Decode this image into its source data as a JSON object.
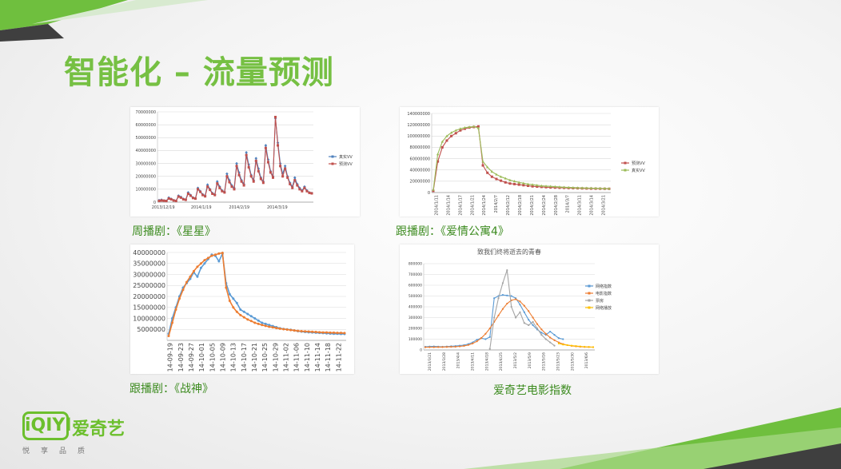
{
  "slide": {
    "title": "智能化 – 流量预测",
    "colors": {
      "green": "#76c043",
      "dark": "#4a4a4a"
    }
  },
  "logo": {
    "box_text": "iQIYI",
    "text": "爱奇艺",
    "tagline": "悦享品质"
  },
  "captions": [
    "周播剧：《星星》",
    "跟播剧：《爱情公寓4》",
    "跟播剧：《战神》",
    "爱奇艺电影指数"
  ],
  "chart_data": [
    {
      "type": "line",
      "title": "",
      "ylim": [
        0,
        70000000
      ],
      "y_ticks": [
        "0",
        "10000000",
        "20000000",
        "30000000",
        "40000000",
        "50000000",
        "60000000",
        "70000000"
      ],
      "x_ticks": [
        "2013/12/19",
        "2014/1/19",
        "2014/2/19",
        "2014/3/19"
      ],
      "legend": {
        "position": "right",
        "entries": [
          "真实VV",
          "预测VV"
        ]
      },
      "series": [
        {
          "name": "真实VV",
          "color": "#4f81bd",
          "marker": "diamond",
          "values": [
            1500000,
            1800000,
            1200000,
            1000000,
            3500000,
            2500000,
            1500000,
            1000000,
            5000000,
            4000000,
            2500000,
            2000000,
            7500000,
            5500000,
            3500000,
            3000000,
            11000000,
            8500000,
            6000000,
            5000000,
            13500000,
            10000000,
            7000000,
            6000000,
            16000000,
            12000000,
            9000000,
            8000000,
            22000000,
            17000000,
            13000000,
            11000000,
            30000000,
            23000000,
            17000000,
            14000000,
            38500000,
            29000000,
            21000000,
            17000000,
            34000000,
            26000000,
            19000000,
            16000000,
            44000000,
            33000000,
            24000000,
            20000000,
            65000000,
            46000000,
            30000000,
            22000000,
            28000000,
            20000000,
            15000000,
            12000000,
            19000000,
            14000000,
            11000000,
            9000000,
            12000000,
            9000000,
            7500000,
            7000000
          ]
        },
        {
          "name": "预测VV",
          "color": "#c0504d",
          "marker": "square",
          "values": [
            1000000,
            1300000,
            1100000,
            900000,
            2800000,
            2200000,
            1300000,
            900000,
            4300000,
            3500000,
            2200000,
            1800000,
            6500000,
            5000000,
            3200000,
            2700000,
            10000000,
            8000000,
            5500000,
            4500000,
            12000000,
            9500000,
            6500000,
            5500000,
            14500000,
            11000000,
            8500000,
            7500000,
            20000000,
            15500000,
            12000000,
            10000000,
            28000000,
            21000000,
            16000000,
            13000000,
            36500000,
            27000000,
            20000000,
            16000000,
            32000000,
            24000000,
            18000000,
            15000000,
            42000000,
            31000000,
            23000000,
            19000000,
            66000000,
            44000000,
            28000000,
            20000000,
            26000000,
            19000000,
            14000000,
            11000000,
            17000000,
            13000000,
            10000000,
            8500000,
            11000000,
            8500000,
            7200000,
            6800000
          ]
        }
      ]
    },
    {
      "type": "line",
      "title": "",
      "ylim": [
        0,
        140000000
      ],
      "y_ticks": [
        "0",
        "20000000",
        "40000000",
        "60000000",
        "80000000",
        "100000000",
        "120000000",
        "140000000"
      ],
      "x_ticks": [
        "2014/1/11",
        "2014/1/14",
        "2014/1/17",
        "2014/1/21",
        "2014/1/24",
        "2014/2/7",
        "2014/2/12",
        "2014/2/18",
        "2014/2/21",
        "2014/2/24",
        "2014/2/28",
        "2014/3/7",
        "2014/3/11",
        "2014/3/14",
        "2014/3/21"
      ],
      "legend": {
        "position": "right",
        "entries": [
          "预测VV",
          "真实VV"
        ]
      },
      "series": [
        {
          "name": "预测VV",
          "color": "#c0504d",
          "marker": "square",
          "values": [
            3000000,
            55000000,
            80000000,
            92000000,
            100000000,
            105000000,
            110000000,
            113000000,
            115000000,
            116000000,
            117000000,
            48000000,
            35000000,
            28000000,
            24000000,
            21000000,
            18000000,
            16000000,
            15000000,
            14000000,
            13000000,
            12000000,
            11000000,
            10500000,
            10000000,
            9500000,
            9000000,
            8800000,
            8500000,
            8300000,
            8000000,
            7800000,
            7600000,
            7400000,
            7200000,
            7000000,
            6900000,
            6800000,
            6700000,
            6600000
          ]
        },
        {
          "name": "真实VV",
          "color": "#9bbb59",
          "marker": "triangle",
          "values": [
            5000000,
            68000000,
            90000000,
            100000000,
            106000000,
            110000000,
            113000000,
            115000000,
            116000000,
            117000000,
            114000000,
            55000000,
            45000000,
            37000000,
            32000000,
            28000000,
            25000000,
            22000000,
            20000000,
            18000000,
            16500000,
            15000000,
            14000000,
            13000000,
            12000000,
            11500000,
            11000000,
            10500000,
            10000000,
            9500000,
            9000000,
            8700000,
            8400000,
            8200000,
            8000000,
            7800000,
            7600000,
            7400000,
            7200000,
            7000000
          ]
        }
      ]
    },
    {
      "type": "line",
      "title": "",
      "ylim": [
        0,
        40000000
      ],
      "y_ticks": [
        "5000000",
        "10000000",
        "15000000",
        "20000000",
        "25000000",
        "30000000",
        "35000000",
        "40000000"
      ],
      "x_ticks": [
        "14-09-19",
        "14-09-23",
        "14-09-27",
        "14-10-01",
        "14-10-05",
        "14-10-09",
        "14-10-13",
        "14-10-17",
        "14-10-21",
        "14-10-25",
        "14-10-29",
        "14-11-02",
        "14-11-06",
        "14-11-10",
        "14-11-14",
        "14-11-18",
        "14-11-22"
      ],
      "legend": {
        "position": "none",
        "entries": []
      },
      "series": [
        {
          "color": "#5b9bd5",
          "values": [
            3000000,
            10000000,
            15000000,
            20000000,
            24000000,
            26000000,
            28000000,
            31000000,
            29000000,
            33000000,
            35000000,
            37000000,
            39000000,
            38500000,
            36000000,
            39500000,
            26000000,
            21000000,
            19000000,
            17000000,
            14000000,
            13000000,
            12000000,
            11000000,
            10000000,
            9000000,
            8000000,
            7500000,
            7000000,
            6500000,
            6000000,
            5500000,
            5200000,
            5000000,
            4800000,
            4500000,
            4200000,
            4000000,
            3800000,
            3700000,
            3600000,
            3500000,
            3400000,
            3300000,
            3200000,
            3100000,
            3000000,
            3000000,
            2900000,
            2900000
          ]
        },
        {
          "color": "#ed7d31",
          "values": [
            2000000,
            8000000,
            14000000,
            19000000,
            23000000,
            26500000,
            29000000,
            31500000,
            33500000,
            35000000,
            36500000,
            37500000,
            38500000,
            39000000,
            39500000,
            39800000,
            24000000,
            18000000,
            15000000,
            13000000,
            11500000,
            10500000,
            9500000,
            8800000,
            8000000,
            7500000,
            7000000,
            6600000,
            6200000,
            5900000,
            5600000,
            5300000,
            5100000,
            4900000,
            4700000,
            4500000,
            4300000,
            4200000,
            4100000,
            4000000,
            3900000,
            3800000,
            3700000,
            3600000,
            3600000,
            3500000,
            3500000,
            3400000,
            3400000,
            3300000
          ]
        }
      ]
    },
    {
      "type": "line",
      "title": "致我们终将逝去的青春",
      "ylim": [
        0,
        800000
      ],
      "y_ticks": [
        "0",
        "100000",
        "200000",
        "300000",
        "400000",
        "500000",
        "600000",
        "700000",
        "800000"
      ],
      "x_ticks": [
        "2013/3/21",
        "2013/3/28",
        "2013/4/4",
        "2013/4/11",
        "2013/4/18",
        "2013/4/25",
        "2013/5/2",
        "2013/5/9",
        "2013/5/16",
        "2013/5/23",
        "2013/5/30",
        "2013/6/6"
      ],
      "legend": {
        "position": "right",
        "entries": [
          "网络指数",
          "电影指数",
          "票房",
          "网络播放"
        ]
      },
      "series": [
        {
          "name": "网络指数",
          "color": "#5b9bd5",
          "values": [
            30000,
            32000,
            33000,
            31000,
            30000,
            32000,
            34000,
            36000,
            40000,
            45000,
            55000,
            70000,
            95000,
            110000,
            100000,
            120000,
            480000,
            500000,
            510000,
            505000,
            500000,
            480000,
            420000,
            350000,
            280000,
            230000,
            190000,
            160000,
            140000,
            170000,
            140000,
            110000,
            100000,
            null,
            null,
            null,
            null,
            null,
            null,
            null
          ]
        },
        {
          "name": "电影指数",
          "color": "#ed7d31",
          "values": [
            25000,
            26000,
            26000,
            27000,
            27000,
            28000,
            29000,
            30000,
            33000,
            38000,
            46000,
            60000,
            80000,
            110000,
            150000,
            200000,
            260000,
            320000,
            380000,
            430000,
            460000,
            470000,
            450000,
            410000,
            360000,
            300000,
            240000,
            190000,
            150000,
            115000,
            90000,
            70000,
            55000,
            45000,
            38000,
            33000,
            30000,
            28000,
            27000,
            26000
          ]
        },
        {
          "name": "票房",
          "color": "#a5a5a5",
          "values": [
            null,
            null,
            null,
            null,
            null,
            null,
            null,
            null,
            null,
            null,
            null,
            null,
            null,
            null,
            null,
            10000,
            300000,
            480000,
            620000,
            740000,
            400000,
            300000,
            350000,
            250000,
            230000,
            260000,
            200000,
            140000,
            100000,
            70000,
            40000,
            null,
            null,
            null,
            null,
            null,
            null,
            null,
            null,
            null
          ]
        },
        {
          "name": "网络播放",
          "color": "#ffc000",
          "values": [
            null,
            null,
            null,
            null,
            null,
            null,
            null,
            null,
            null,
            null,
            null,
            null,
            null,
            null,
            null,
            null,
            null,
            null,
            null,
            null,
            null,
            null,
            null,
            null,
            null,
            null,
            null,
            null,
            null,
            null,
            null,
            60000,
            50000,
            45000,
            40000,
            36000,
            33000,
            30000,
            28000,
            26000
          ]
        }
      ]
    }
  ]
}
